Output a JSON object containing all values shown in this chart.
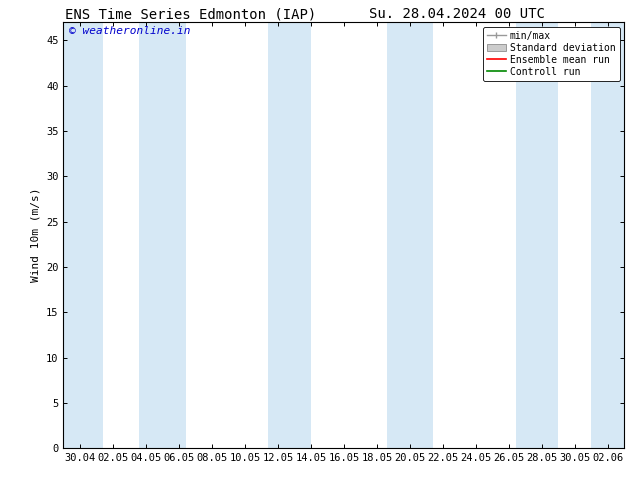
{
  "title_left": "ENS Time Series Edmonton (IAP)",
  "title_right": "Su. 28.04.2024 00 UTC",
  "ylabel": "Wind 10m (m/s)",
  "watermark": "© weatheronline.in",
  "watermark_color": "#0000cc",
  "ylim": [
    0,
    47
  ],
  "yticks": [
    0,
    5,
    10,
    15,
    20,
    25,
    30,
    35,
    40,
    45
  ],
  "xtick_labels": [
    "30.04",
    "02.05",
    "04.05",
    "06.05",
    "08.05",
    "10.05",
    "12.05",
    "14.05",
    "16.05",
    "18.05",
    "20.05",
    "22.05",
    "24.05",
    "26.05",
    "28.05",
    "30.05",
    "02.06"
  ],
  "shade_band_color": "#d6e8f5",
  "legend_labels": [
    "min/max",
    "Standard deviation",
    "Ensemble mean run",
    "Controll run"
  ],
  "legend_minmax_color": "#999999",
  "legend_std_color": "#cccccc",
  "legend_ens_color": "#ff0000",
  "legend_ctrl_color": "#008800",
  "background_color": "#ffffff",
  "title_fontsize": 10,
  "label_fontsize": 8,
  "tick_fontsize": 7.5,
  "legend_fontsize": 7,
  "watermark_fontsize": 8
}
